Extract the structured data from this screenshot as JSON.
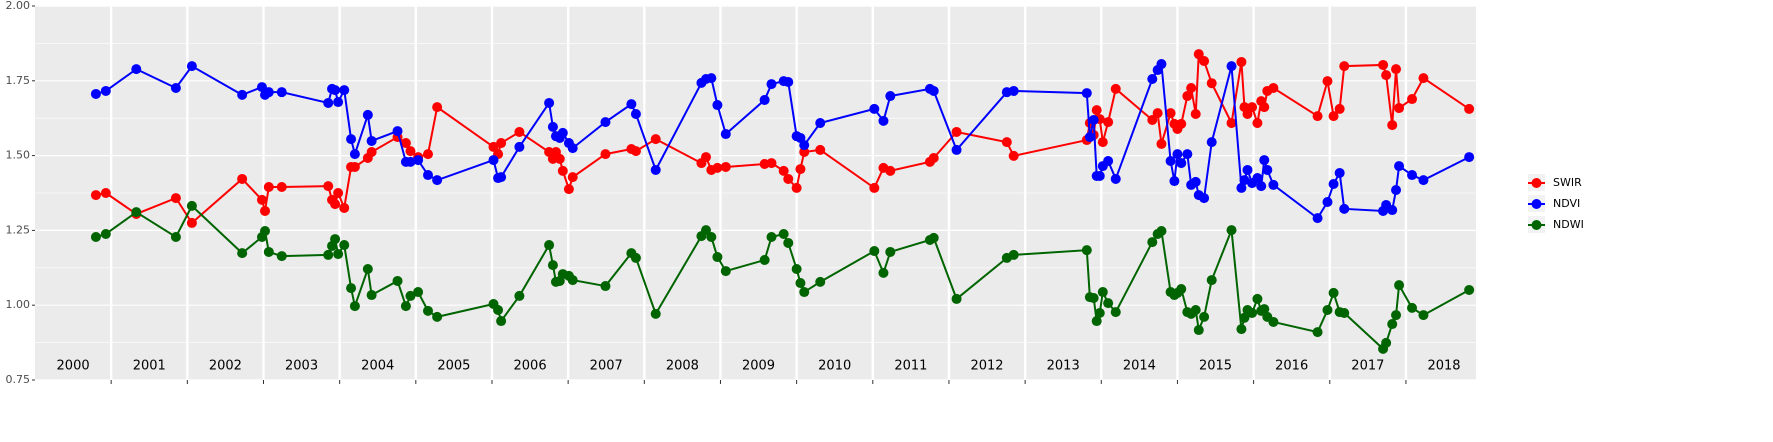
{
  "chart_data": {
    "type": "line",
    "x": [
      2000.8,
      2000.93,
      2001.33,
      2001.85,
      2002.06,
      2002.72,
      2002.98,
      2003.02,
      2003.07,
      2003.24,
      2003.85,
      2003.9,
      2003.94,
      2003.98,
      2004.06,
      2004.15,
      2004.2,
      2004.37,
      2004.42,
      2004.76,
      2004.87,
      2004.93,
      2005.03,
      2005.16,
      2005.28,
      2006.02,
      2006.08,
      2006.12,
      2006.36,
      2006.75,
      2006.8,
      2006.84,
      2006.89,
      2006.93,
      2007.01,
      2007.06,
      2007.49,
      2007.83,
      2007.89,
      2008.15,
      2008.75,
      2008.81,
      2008.88,
      2008.96,
      2009.07,
      2009.58,
      2009.67,
      2009.83,
      2009.89,
      2010.0,
      2010.05,
      2010.1,
      2010.31,
      2011.02,
      2011.14,
      2011.23,
      2011.75,
      2011.8,
      2012.1,
      2012.76,
      2012.85,
      2013.81,
      2013.85,
      2013.9,
      2013.94,
      2013.98,
      2014.02,
      2014.09,
      2014.19,
      2014.67,
      2014.74,
      2014.79,
      2014.91,
      2014.96,
      2015.0,
      2015.05,
      2015.13,
      2015.18,
      2015.24,
      2015.28,
      2015.35,
      2015.45,
      2015.71,
      2015.84,
      2015.88,
      2015.92,
      2015.98,
      2016.05,
      2016.1,
      2016.14,
      2016.18,
      2016.26,
      2016.84,
      2016.97,
      2017.05,
      2017.13,
      2017.19,
      2017.7,
      2017.74,
      2017.82,
      2017.87,
      2017.91,
      2018.08,
      2018.23,
      2018.83
    ],
    "series": [
      {
        "name": "SWIR",
        "color": "#ff0000",
        "values": [
          1.368,
          1.375,
          1.305,
          1.358,
          1.275,
          1.422,
          1.352,
          1.315,
          1.395,
          1.395,
          1.398,
          1.352,
          1.338,
          1.375,
          1.325,
          1.462,
          1.462,
          1.492,
          1.512,
          1.562,
          1.542,
          1.515,
          1.495,
          1.505,
          1.662,
          1.529,
          1.505,
          1.542,
          1.579,
          1.512,
          1.489,
          1.512,
          1.489,
          1.449,
          1.388,
          1.428,
          1.505,
          1.522,
          1.515,
          1.555,
          1.475,
          1.495,
          1.452,
          1.459,
          1.462,
          1.472,
          1.475,
          1.449,
          1.422,
          1.392,
          1.455,
          1.512,
          1.519,
          1.392,
          1.459,
          1.449,
          1.479,
          1.492,
          1.579,
          1.545,
          1.499,
          1.552,
          1.609,
          1.569,
          1.652,
          1.622,
          1.545,
          1.612,
          1.723,
          1.619,
          1.642,
          1.539,
          1.642,
          1.606,
          1.589,
          1.606,
          1.699,
          1.726,
          1.639,
          1.839,
          1.816,
          1.742,
          1.609,
          1.813,
          1.662,
          1.639,
          1.662,
          1.609,
          1.682,
          1.662,
          1.716,
          1.726,
          1.632,
          1.749,
          1.632,
          1.656,
          1.799,
          1.803,
          1.769,
          1.602,
          1.789,
          1.659,
          1.689,
          1.759,
          1.656
        ]
      },
      {
        "name": "NDVI",
        "color": "#0000ff",
        "values": [
          1.706,
          1.716,
          1.789,
          1.726,
          1.799,
          1.703,
          1.729,
          1.703,
          1.712,
          1.712,
          1.676,
          1.723,
          1.719,
          1.679,
          1.719,
          1.555,
          1.505,
          1.636,
          1.549,
          1.582,
          1.479,
          1.479,
          1.485,
          1.435,
          1.418,
          1.485,
          1.425,
          1.428,
          1.529,
          1.676,
          1.596,
          1.565,
          1.559,
          1.576,
          1.542,
          1.525,
          1.612,
          1.672,
          1.639,
          1.452,
          1.743,
          1.756,
          1.759,
          1.669,
          1.572,
          1.686,
          1.739,
          1.749,
          1.746,
          1.565,
          1.559,
          1.535,
          1.609,
          1.656,
          1.616,
          1.699,
          1.723,
          1.716,
          1.519,
          1.712,
          1.716,
          1.709,
          1.562,
          1.619,
          1.432,
          1.432,
          1.465,
          1.482,
          1.422,
          1.756,
          1.786,
          1.806,
          1.482,
          1.415,
          1.505,
          1.475,
          1.505,
          1.402,
          1.412,
          1.368,
          1.358,
          1.545,
          1.799,
          1.392,
          1.418,
          1.452,
          1.408,
          1.425,
          1.398,
          1.485,
          1.452,
          1.402,
          1.291,
          1.345,
          1.405,
          1.442,
          1.322,
          1.315,
          1.335,
          1.318,
          1.385,
          1.465,
          1.435,
          1.418,
          1.495
        ]
      },
      {
        "name": "NDWI",
        "color": "#006400",
        "values": [
          1.228,
          1.238,
          1.311,
          1.228,
          1.332,
          1.174,
          1.228,
          1.248,
          1.178,
          1.164,
          1.168,
          1.198,
          1.221,
          1.171,
          1.201,
          1.057,
          0.997,
          1.121,
          1.034,
          1.081,
          0.997,
          1.031,
          1.044,
          0.981,
          0.961,
          1.004,
          0.984,
          0.947,
          1.031,
          1.201,
          1.134,
          1.078,
          1.081,
          1.104,
          1.098,
          1.084,
          1.064,
          1.174,
          1.158,
          0.971,
          1.231,
          1.251,
          1.228,
          1.161,
          1.114,
          1.151,
          1.228,
          1.238,
          1.208,
          1.121,
          1.074,
          1.044,
          1.078,
          1.181,
          1.108,
          1.178,
          1.218,
          1.225,
          1.021,
          1.158,
          1.168,
          1.184,
          1.027,
          1.024,
          0.947,
          0.974,
          1.044,
          1.007,
          0.977,
          1.211,
          1.238,
          1.248,
          1.044,
          1.034,
          1.041,
          1.054,
          0.977,
          0.971,
          0.984,
          0.917,
          0.961,
          1.084,
          1.251,
          0.92,
          0.958,
          0.984,
          0.974,
          1.021,
          0.981,
          0.987,
          0.961,
          0.944,
          0.91,
          0.984,
          1.041,
          0.977,
          0.974,
          0.854,
          0.874,
          0.937,
          0.967,
          1.067,
          0.991,
          0.967,
          1.051
        ]
      }
    ],
    "xlim": [
      2000,
      2018.92
    ],
    "xticks": [
      2001,
      2002,
      2003,
      2004,
      2005,
      2006,
      2007,
      2008,
      2009,
      2010,
      2011,
      2012,
      2013,
      2014,
      2015,
      2016,
      2017,
      2018
    ],
    "year_labels": [
      2000,
      2001,
      2002,
      2003,
      2004,
      2005,
      2006,
      2007,
      2008,
      2009,
      2010,
      2011,
      2012,
      2013,
      2014,
      2015,
      2016,
      2017,
      2018
    ],
    "ylim": [
      0.75,
      2.0
    ],
    "yticks": [
      {
        "value": 0.75,
        "label": "0.75"
      },
      {
        "value": 1.0,
        "label": "1.00"
      },
      {
        "value": 1.25,
        "label": "1.25"
      },
      {
        "value": 1.5,
        "label": "1.50"
      },
      {
        "value": 1.75,
        "label": "1.75"
      },
      {
        "value": 2.0,
        "label": "2.00"
      }
    ],
    "grid": true,
    "legend": "right",
    "markers": true
  }
}
